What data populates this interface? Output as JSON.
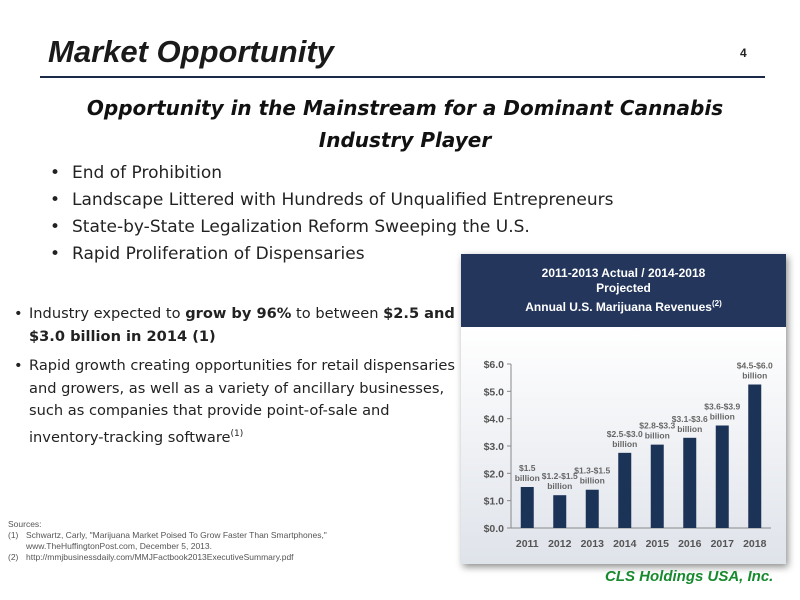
{
  "slide": {
    "title": "Market Opportunity",
    "page_number": "4",
    "subtitle_line1": "Opportunity in the Mainstream for a Dominant Cannabis",
    "subtitle_line2": "Industry Player",
    "bullets": [
      "End of Prohibition",
      "Landscape Littered with Hundreds of Unqualified Entrepreneurs",
      "State-by-State Legalization Reform Sweeping the U.S.",
      "Rapid Proliferation of Dispensaries"
    ],
    "detail_1": {
      "pre": "Industry expected to ",
      "bold1": "grow by 96%",
      "mid": " to between ",
      "bold2": "$2.5 and $3.0 billion in 2014 (1)"
    },
    "detail_2": {
      "text": "Rapid growth creating opportunities for retail dispensaries and growers, as well as a variety of ancillary businesses, such as companies that provide point-of-sale and inventory-tracking software",
      "sup": "(1)"
    },
    "sources": {
      "heading": "Sources:",
      "items": [
        {
          "num": "(1)",
          "line1": "Schwartz, Carly, \"Marijuana Market Poised To Grow Faster Than Smartphones,\"",
          "line2": "www.TheHuffingtonPost.com, December 5, 2013."
        },
        {
          "num": "(2)",
          "line1": "http://mmjbusinessdaily.com/MMJFactbook2013ExecutiveSummary.pdf",
          "line2": ""
        }
      ]
    },
    "company": "CLS Holdings USA, Inc."
  },
  "chart_data": {
    "type": "bar",
    "title_line1": "2011-2013 Actual / 2014-2018",
    "title_line2": "Projected",
    "title_line3": "Annual U.S. Marijuana Revenues",
    "title_sup": "(2)",
    "categories": [
      "2011",
      "2012",
      "2013",
      "2014",
      "2015",
      "2016",
      "2017",
      "2018"
    ],
    "values": [
      1.5,
      1.2,
      1.4,
      2.75,
      3.05,
      3.3,
      3.75,
      5.25
    ],
    "data_labels": [
      [
        "$1.5",
        "billion"
      ],
      [
        "$1.2-$1.5",
        "billion"
      ],
      [
        "$1.3-$1.5",
        "billion"
      ],
      [
        "$2.5-$3.0",
        "billion"
      ],
      [
        "$2.8-$3.3",
        "billion"
      ],
      [
        "$3.1-$3.6",
        "billion"
      ],
      [
        "$3.6-$3.9",
        "billion"
      ],
      [
        "$4.5-$6.0",
        "billion"
      ]
    ],
    "yticks": [
      "$0.0",
      "$1.0",
      "$2.0",
      "$3.0",
      "$4.0",
      "$5.0",
      "$6.0"
    ],
    "ylim": [
      0,
      6
    ],
    "bar_color": "#1c3358",
    "grid": false,
    "legend": "none"
  }
}
